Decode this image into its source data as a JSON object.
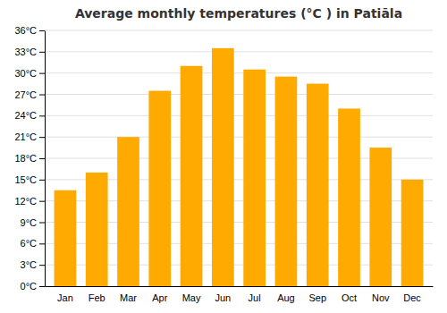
{
  "chart_data": {
    "type": "bar",
    "title": "Average monthly temperatures (°C ) in Patiāla",
    "categories": [
      "Jan",
      "Feb",
      "Mar",
      "Apr",
      "May",
      "Jun",
      "Jul",
      "Aug",
      "Sep",
      "Oct",
      "Nov",
      "Dec"
    ],
    "values": [
      13.5,
      16.0,
      21.0,
      27.5,
      31.0,
      33.5,
      30.5,
      29.5,
      28.5,
      25.0,
      19.5,
      15.0
    ],
    "color": "#FFAA00",
    "ylim": [
      0,
      36
    ],
    "yticks": [
      {
        "value": 0,
        "label": "0°C"
      },
      {
        "value": 3,
        "label": "3°C"
      },
      {
        "value": 6,
        "label": "6°C"
      },
      {
        "value": 9,
        "label": "9°C"
      },
      {
        "value": 12,
        "label": "12°C"
      },
      {
        "value": 15,
        "label": "15°C"
      },
      {
        "value": 18,
        "label": "18°C"
      },
      {
        "value": 21,
        "label": "21°C"
      },
      {
        "value": 24,
        "label": "24°C"
      },
      {
        "value": 27,
        "label": "27°C"
      },
      {
        "value": 30,
        "label": "30°C"
      },
      {
        "value": 33,
        "label": "33°C"
      },
      {
        "value": 36,
        "label": "36°C"
      }
    ],
    "grid": true
  }
}
